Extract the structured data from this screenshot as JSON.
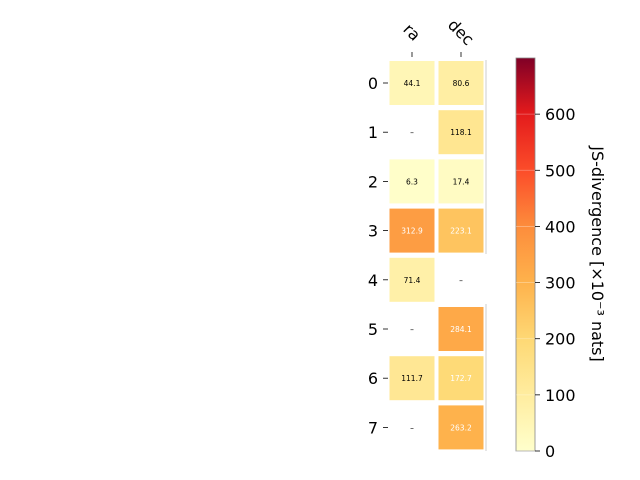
{
  "chart_data": {
    "type": "heatmap",
    "columns": [
      "ra",
      "dec"
    ],
    "rows": [
      "0",
      "1",
      "2",
      "3",
      "4",
      "5",
      "6",
      "7"
    ],
    "values": [
      [
        44.1,
        80.6
      ],
      [
        null,
        118.1
      ],
      [
        6.3,
        17.4
      ],
      [
        312.9,
        223.1
      ],
      [
        71.4,
        null
      ],
      [
        null,
        284.1
      ],
      [
        111.7,
        172.7
      ],
      [
        null,
        263.2
      ]
    ],
    "cell_labels": [
      [
        "44.1",
        "80.6"
      ],
      [
        "–",
        "118.1"
      ],
      [
        "6.3",
        "17.4"
      ],
      [
        "312.9",
        "223.1"
      ],
      [
        "71.4",
        "–"
      ],
      [
        "–",
        "284.1"
      ],
      [
        "111.7",
        "172.7"
      ],
      [
        "–",
        "263.2"
      ]
    ],
    "colormap": "YlOrRd",
    "colorbar": {
      "label": "JS-divergence [×10⁻³ nats]",
      "range": [
        0,
        700
      ],
      "ticks": [
        0,
        100,
        200,
        300,
        400,
        500,
        600
      ],
      "tick_labels": [
        "0",
        "100",
        "200",
        "300",
        "400",
        "500",
        "600"
      ]
    }
  }
}
